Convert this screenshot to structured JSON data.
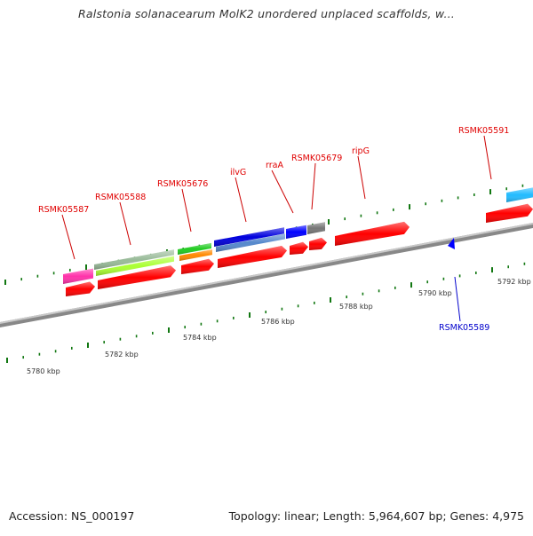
{
  "title": "Ralstonia solanacearum MolK2 unordered unplaced scaffolds, w...",
  "footer": {
    "accession": "Accession: NS_000197",
    "summary": "Topology: linear; Length: 5,964,607 bp; Genes: 4,975"
  },
  "colors": {
    "label_forward": "#e00000",
    "label_reverse": "#0000cc",
    "backbone": "#888888",
    "tick": "#117711"
  },
  "scale_labels": [
    "5780 kbp",
    "5782 kbp",
    "5784 kbp",
    "5786 kbp",
    "5788 kbp",
    "5790 kbp",
    "5792 kbp"
  ],
  "gene_labels": [
    {
      "id": "RSMK05587",
      "strand": "forward"
    },
    {
      "id": "RSMK05588",
      "strand": "forward"
    },
    {
      "id": "RSMK05676",
      "strand": "forward"
    },
    {
      "id": "ilvG",
      "strand": "forward"
    },
    {
      "id": "rraA",
      "strand": "forward"
    },
    {
      "id": "RSMK05679",
      "strand": "forward"
    },
    {
      "id": "ripG",
      "strand": "forward"
    },
    {
      "id": "RSMK05591",
      "strand": "forward"
    },
    {
      "id": "RSMK05589",
      "strand": "reverse"
    }
  ],
  "features": [
    {
      "name": "RSMK05587",
      "type": "gene",
      "color": "#ff0000"
    },
    {
      "name": "RSMK05587",
      "type": "product",
      "color": "#ff33aa"
    },
    {
      "name": "RSMK05588",
      "type": "gene",
      "color": "#ff0000"
    },
    {
      "name": "RSMK05588",
      "type": "product",
      "color": "#aaff33"
    },
    {
      "name": "RSMK05588",
      "type": "product",
      "color": "#99bb99"
    },
    {
      "name": "RSMK05676",
      "type": "gene",
      "color": "#ff0000"
    },
    {
      "name": "RSMK05676",
      "type": "product",
      "color": "#ff8800"
    },
    {
      "name": "RSMK05676",
      "type": "product",
      "color": "#22cc22"
    },
    {
      "name": "ilvG",
      "type": "gene",
      "color": "#ff0000"
    },
    {
      "name": "ilvG",
      "type": "product",
      "color": "#5588cc"
    },
    {
      "name": "ilvG",
      "type": "product",
      "color": "#0000dd"
    },
    {
      "name": "rraA",
      "type": "gene",
      "color": "#ff0000"
    },
    {
      "name": "rraA",
      "type": "product",
      "color": "#0000ff"
    },
    {
      "name": "RSMK05679",
      "type": "gene",
      "color": "#ff0000"
    },
    {
      "name": "RSMK05679",
      "type": "product",
      "color": "#777777"
    },
    {
      "name": "ripG",
      "type": "gene",
      "color": "#ff0000"
    },
    {
      "name": "RSMK05591",
      "type": "gene",
      "color": "#ff0000"
    },
    {
      "name": "RSMK05591",
      "type": "product",
      "color": "#22bbff"
    },
    {
      "name": "RSMK05589",
      "type": "gene",
      "color": "#0000ff"
    }
  ]
}
